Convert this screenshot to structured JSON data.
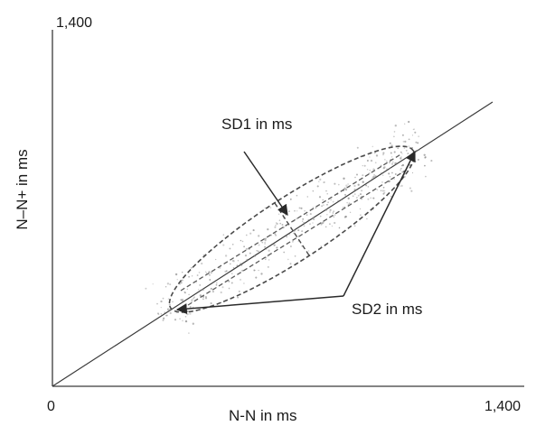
{
  "diagram": {
    "title": "",
    "axes": {
      "x_label": "N-N in ms",
      "y_label": "N–N+ in ms",
      "x_min_label": "0",
      "x_max_label": "1,400",
      "y_max_label": "1,400"
    },
    "annotations": {
      "sd1": "SD1 in ms",
      "sd2": "SD2 in ms"
    },
    "colors": {
      "line": "#3a3a3a",
      "dots": "#8a8a8a",
      "text": "#1a1a1a"
    }
  }
}
